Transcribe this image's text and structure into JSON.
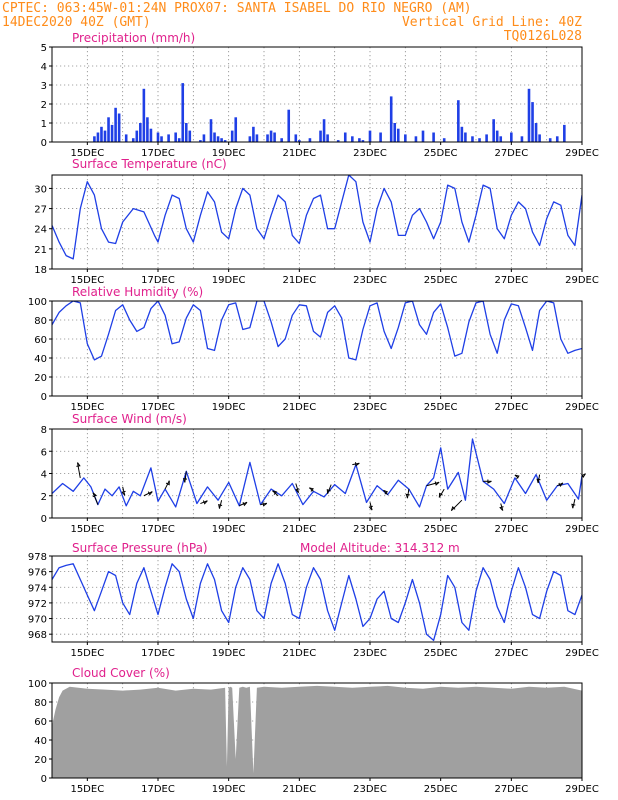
{
  "header": {
    "line1_left": "CPTEC:   063:45W-01:24N   PROX07: SANTA ISABEL DO RIO NEGRO (AM)",
    "line2_left": "14DEC2020 40Z (GMT)",
    "line2_right": "Vertical Grid Line: 40Z",
    "line3_right": "TQ0126L028"
  },
  "colors": {
    "header": "#ff8c1a",
    "panel_title": "#e0208c",
    "series": "#1f3fe6",
    "cloud": "#a0a0a0",
    "grid": "#888888"
  },
  "x_ticks": [
    "15DEC",
    "17DEC",
    "19DEC",
    "21DEC",
    "23DEC",
    "25DEC",
    "27DEC",
    "29DEC"
  ],
  "chart_data": [
    {
      "type": "bar",
      "title": "Precipitation (mm/h)",
      "ylim": [
        0,
        5
      ],
      "yticks": [
        "0",
        "1",
        "2",
        "3",
        "4",
        "5"
      ],
      "x": [
        15.2,
        15.3,
        15.4,
        15.5,
        15.6,
        15.7,
        15.8,
        15.9,
        16.1,
        16.3,
        16.4,
        16.5,
        16.6,
        16.7,
        16.8,
        17.0,
        17.1,
        17.3,
        17.5,
        17.6,
        17.7,
        17.8,
        17.9,
        18.2,
        18.3,
        18.5,
        18.6,
        18.7,
        18.8,
        18.9,
        19.1,
        19.2,
        19.6,
        19.7,
        19.8,
        20.1,
        20.2,
        20.3,
        20.5,
        20.7,
        20.9,
        21.0,
        21.3,
        21.6,
        21.7,
        21.8,
        22.1,
        22.3,
        22.5,
        22.7,
        22.8,
        23.0,
        23.3,
        23.6,
        23.7,
        23.8,
        24.0,
        24.3,
        24.5,
        24.8,
        25.1,
        25.5,
        25.6,
        25.7,
        25.9,
        26.1,
        26.3,
        26.5,
        26.6,
        26.7,
        27.0,
        27.3,
        27.5,
        27.6,
        27.7,
        27.8,
        28.1,
        28.3,
        28.5
      ],
      "values": [
        0.3,
        0.5,
        0.8,
        0.6,
        1.3,
        0.9,
        1.8,
        1.5,
        0.4,
        0.2,
        0.6,
        1.0,
        2.8,
        1.3,
        0.7,
        0.5,
        0.3,
        0.4,
        0.5,
        0.2,
        3.1,
        1.0,
        0.6,
        0.1,
        0.4,
        1.2,
        0.5,
        0.3,
        0.2,
        0.1,
        0.6,
        1.3,
        0.3,
        0.8,
        0.4,
        0.4,
        0.6,
        0.5,
        0.2,
        1.7,
        0.4,
        0.1,
        0.2,
        0.6,
        1.2,
        0.4,
        0.1,
        0.5,
        0.3,
        0.2,
        0.1,
        0.6,
        0.5,
        2.4,
        1.0,
        0.7,
        0.4,
        0.3,
        0.6,
        0.5,
        0.2,
        2.2,
        0.8,
        0.5,
        0.3,
        0.2,
        0.4,
        1.2,
        0.6,
        0.3,
        0.5,
        0.3,
        2.8,
        2.1,
        1.0,
        0.4,
        0.2,
        0.3,
        0.9
      ]
    },
    {
      "type": "line",
      "title": "Surface Temperature (nC)",
      "ylim": [
        18,
        32
      ],
      "yticks": [
        "18",
        "21",
        "24",
        "27",
        "30"
      ],
      "x": [
        14.0,
        14.2,
        14.4,
        14.6,
        14.8,
        15.0,
        15.2,
        15.4,
        15.6,
        15.8,
        16.0,
        16.3,
        16.6,
        16.9,
        17.0,
        17.2,
        17.4,
        17.6,
        17.8,
        18.0,
        18.2,
        18.4,
        18.6,
        18.8,
        19.0,
        19.2,
        19.4,
        19.6,
        19.8,
        20.0,
        20.2,
        20.4,
        20.6,
        20.8,
        21.0,
        21.2,
        21.4,
        21.6,
        21.8,
        22.0,
        22.2,
        22.4,
        22.6,
        22.8,
        23.0,
        23.2,
        23.4,
        23.6,
        23.8,
        24.0,
        24.2,
        24.4,
        24.6,
        24.8,
        25.0,
        25.2,
        25.4,
        25.6,
        25.8,
        26.0,
        26.2,
        26.4,
        26.6,
        26.8,
        27.0,
        27.2,
        27.4,
        27.6,
        27.8,
        28.0,
        28.2,
        28.4,
        28.6,
        28.8,
        29.0
      ],
      "values": [
        24.5,
        22.0,
        20.0,
        19.5,
        27.0,
        31.0,
        29.0,
        24.0,
        22.0,
        21.8,
        25.0,
        27.0,
        26.5,
        23.0,
        22.0,
        26.0,
        29.0,
        28.5,
        24.0,
        22.0,
        26.0,
        29.5,
        28.0,
        23.5,
        22.5,
        27.0,
        30.0,
        29.0,
        24.0,
        22.5,
        26.0,
        29.0,
        28.0,
        23.0,
        21.8,
        26.0,
        28.5,
        29.0,
        24.0,
        24.0,
        28.0,
        32.0,
        31.0,
        25.0,
        22.0,
        27.0,
        30.0,
        28.0,
        23.0,
        23.0,
        26.0,
        27.0,
        25.0,
        22.5,
        25.0,
        30.5,
        30.0,
        25.0,
        22.0,
        26.0,
        30.5,
        30.0,
        24.0,
        22.5,
        26.0,
        28.0,
        27.0,
        23.5,
        21.5,
        25.5,
        28.0,
        27.5,
        23.0,
        21.5,
        29.0
      ]
    },
    {
      "type": "line",
      "title": "Relative Humidity (%)",
      "ylim": [
        0,
        100
      ],
      "yticks": [
        "0",
        "20",
        "40",
        "60",
        "80",
        "100"
      ],
      "x": [
        14.0,
        14.2,
        14.4,
        14.6,
        14.8,
        15.0,
        15.2,
        15.4,
        15.6,
        15.8,
        16.0,
        16.2,
        16.4,
        16.6,
        16.8,
        17.0,
        17.2,
        17.4,
        17.6,
        17.8,
        18.0,
        18.2,
        18.4,
        18.6,
        18.8,
        19.0,
        19.2,
        19.4,
        19.6,
        19.8,
        20.0,
        20.2,
        20.4,
        20.6,
        20.8,
        21.0,
        21.2,
        21.4,
        21.6,
        21.8,
        22.0,
        22.2,
        22.4,
        22.6,
        22.8,
        23.0,
        23.2,
        23.4,
        23.6,
        23.8,
        24.0,
        24.2,
        24.4,
        24.6,
        24.8,
        25.0,
        25.2,
        25.4,
        25.6,
        25.8,
        26.0,
        26.2,
        26.4,
        26.6,
        26.8,
        27.0,
        27.2,
        27.4,
        27.6,
        27.8,
        28.0,
        28.2,
        28.4,
        28.6,
        28.8,
        29.0
      ],
      "values": [
        75,
        88,
        95,
        100,
        98,
        55,
        38,
        42,
        65,
        90,
        96,
        80,
        68,
        72,
        92,
        100,
        85,
        55,
        57,
        82,
        96,
        90,
        50,
        48,
        80,
        96,
        98,
        70,
        72,
        100,
        100,
        78,
        52,
        60,
        85,
        96,
        95,
        68,
        62,
        88,
        95,
        82,
        40,
        38,
        70,
        95,
        98,
        68,
        50,
        72,
        98,
        100,
        75,
        65,
        88,
        97,
        72,
        42,
        45,
        78,
        98,
        100,
        65,
        45,
        80,
        97,
        95,
        72,
        48,
        90,
        100,
        98,
        60,
        45,
        48,
        50
      ]
    },
    {
      "type": "line",
      "title": "Surface Wind (m/s)",
      "ylim": [
        0,
        8
      ],
      "yticks": [
        "0",
        "2",
        "4",
        "6",
        "8"
      ],
      "x": [
        14.0,
        14.3,
        14.6,
        14.9,
        15.1,
        15.3,
        15.5,
        15.7,
        15.9,
        16.1,
        16.3,
        16.5,
        16.8,
        17.0,
        17.2,
        17.5,
        17.8,
        18.1,
        18.4,
        18.7,
        19.0,
        19.3,
        19.6,
        19.9,
        20.2,
        20.5,
        20.8,
        21.1,
        21.4,
        21.7,
        22.0,
        22.3,
        22.6,
        22.9,
        23.2,
        23.5,
        23.8,
        24.1,
        24.4,
        24.6,
        24.8,
        25.0,
        25.2,
        25.5,
        25.7,
        25.9,
        26.2,
        26.5,
        26.8,
        27.1,
        27.4,
        27.7,
        28.0,
        28.3,
        28.6,
        28.9,
        29.0
      ],
      "values": [
        2.2,
        3.1,
        2.4,
        3.6,
        2.8,
        1.2,
        2.6,
        2.0,
        2.8,
        1.1,
        2.4,
        2.0,
        4.5,
        1.5,
        2.6,
        1.0,
        4.2,
        1.3,
        2.8,
        1.6,
        3.2,
        1.1,
        5.0,
        1.2,
        2.6,
        2.0,
        3.1,
        1.2,
        2.4,
        1.9,
        3.0,
        2.2,
        4.8,
        1.4,
        2.9,
        2.1,
        3.4,
        2.6,
        1.0,
        2.9,
        3.6,
        6.3,
        2.6,
        4.1,
        1.6,
        7.1,
        3.3,
        2.6,
        1.3,
        3.6,
        2.2,
        3.9,
        1.6,
        2.9,
        3.1,
        1.7,
        3.8
      ],
      "arrows": [
        {
          "x": 14.8,
          "u": -0.4,
          "v": 2.2
        },
        {
          "x": 15.3,
          "u": -0.7,
          "v": 1.7
        },
        {
          "x": 16.0,
          "u": 0.3,
          "v": -1.2
        },
        {
          "x": 16.6,
          "u": 1.2,
          "v": 0.6
        },
        {
          "x": 17.2,
          "u": 0.6,
          "v": 1.2
        },
        {
          "x": 17.8,
          "u": -0.2,
          "v": -1.6
        },
        {
          "x": 18.2,
          "u": 1.0,
          "v": 0.4
        },
        {
          "x": 18.8,
          "u": -0.3,
          "v": -1.2
        },
        {
          "x": 19.3,
          "u": 1.1,
          "v": 0.5
        },
        {
          "x": 19.9,
          "u": 0.9,
          "v": 0.2
        },
        {
          "x": 20.4,
          "u": -0.8,
          "v": 0.7
        },
        {
          "x": 20.9,
          "u": 0.4,
          "v": -1.3
        },
        {
          "x": 21.4,
          "u": -0.6,
          "v": 0.5
        },
        {
          "x": 21.9,
          "u": -0.5,
          "v": -1.3
        },
        {
          "x": 22.5,
          "u": 1.0,
          "v": 0.2
        },
        {
          "x": 23.0,
          "u": 0.3,
          "v": -1.1
        },
        {
          "x": 23.5,
          "u": -0.6,
          "v": 0.6
        },
        {
          "x": 24.1,
          "u": -0.2,
          "v": -1.3
        },
        {
          "x": 24.6,
          "u": 1.8,
          "v": 0.5
        },
        {
          "x": 25.1,
          "u": -0.7,
          "v": -1.2
        },
        {
          "x": 25.6,
          "u": -1.5,
          "v": -1.5
        },
        {
          "x": 26.2,
          "u": 1.2,
          "v": 0.0
        },
        {
          "x": 26.7,
          "u": 0.3,
          "v": -1.0
        },
        {
          "x": 27.2,
          "u": -0.5,
          "v": 0.4
        },
        {
          "x": 27.8,
          "u": -0.2,
          "v": -1.2
        },
        {
          "x": 28.3,
          "u": 0.8,
          "v": 0.4
        },
        {
          "x": 28.8,
          "u": -0.3,
          "v": -1.3
        },
        {
          "x": 29.0,
          "u": 0.5,
          "v": 0.3
        }
      ]
    },
    {
      "type": "line",
      "title": "Surface Pressure (hPa)",
      "annotation": "Model Altitude: 314.312 m",
      "ylim": [
        967,
        978
      ],
      "yticks": [
        "968",
        "970",
        "972",
        "974",
        "976",
        "978"
      ],
      "x": [
        14.0,
        14.2,
        14.4,
        14.6,
        14.8,
        15.0,
        15.2,
        15.4,
        15.6,
        15.8,
        16.0,
        16.2,
        16.4,
        16.6,
        16.8,
        17.0,
        17.2,
        17.4,
        17.6,
        17.8,
        18.0,
        18.2,
        18.4,
        18.6,
        18.8,
        19.0,
        19.2,
        19.4,
        19.6,
        19.8,
        20.0,
        20.2,
        20.4,
        20.6,
        20.8,
        21.0,
        21.2,
        21.4,
        21.6,
        21.8,
        22.0,
        22.2,
        22.4,
        22.6,
        22.8,
        23.0,
        23.2,
        23.4,
        23.6,
        23.8,
        24.0,
        24.2,
        24.4,
        24.6,
        24.8,
        25.0,
        25.2,
        25.4,
        25.6,
        25.8,
        26.0,
        26.2,
        26.4,
        26.6,
        26.8,
        27.0,
        27.2,
        27.4,
        27.6,
        27.8,
        28.0,
        28.2,
        28.4,
        28.6,
        28.8,
        29.0
      ],
      "values": [
        975.0,
        976.5,
        976.8,
        977.0,
        975.0,
        973.0,
        971.0,
        973.5,
        976.0,
        975.5,
        972.0,
        970.5,
        974.5,
        976.5,
        973.5,
        970.5,
        974.0,
        977.0,
        976.0,
        972.5,
        970.0,
        974.5,
        977.0,
        975.0,
        971.0,
        969.5,
        974.0,
        976.5,
        975.0,
        971.0,
        970.0,
        974.5,
        977.0,
        974.5,
        970.5,
        970.0,
        974.0,
        976.5,
        975.0,
        971.0,
        968.5,
        972.0,
        975.5,
        972.5,
        969.0,
        970.0,
        972.5,
        973.5,
        970.0,
        969.5,
        972.0,
        975.0,
        972.0,
        968.0,
        967.2,
        970.5,
        975.5,
        974.0,
        969.5,
        968.5,
        973.5,
        976.5,
        975.0,
        971.5,
        969.5,
        973.5,
        976.5,
        974.0,
        970.5,
        970.0,
        973.5,
        976.0,
        975.5,
        971.0,
        970.5,
        973.0
      ]
    },
    {
      "type": "area",
      "title": "Cloud Cover (%)",
      "ylim": [
        0,
        100
      ],
      "yticks": [
        "0",
        "20",
        "40",
        "60",
        "80",
        "100"
      ],
      "x": [
        14.0,
        14.1,
        14.2,
        14.3,
        14.5,
        15.0,
        15.5,
        16.0,
        16.5,
        17.0,
        17.5,
        18.0,
        18.5,
        18.9,
        18.95,
        19.0,
        19.05,
        19.1,
        19.2,
        19.3,
        19.4,
        19.5,
        19.6,
        19.7,
        19.8,
        20.0,
        20.5,
        21.0,
        21.5,
        22.0,
        22.5,
        23.0,
        23.5,
        24.0,
        24.5,
        25.0,
        25.5,
        26.0,
        26.5,
        27.0,
        27.5,
        28.0,
        28.5,
        29.0
      ],
      "values": [
        55,
        72,
        85,
        92,
        96,
        94,
        93,
        92,
        93,
        95,
        92,
        94,
        93,
        95,
        12,
        95,
        96,
        95,
        20,
        95,
        96,
        95,
        96,
        5,
        95,
        96,
        95,
        96,
        97,
        96,
        95,
        96,
        97,
        95,
        94,
        96,
        95,
        96,
        95,
        94,
        96,
        95,
        96,
        92
      ]
    }
  ]
}
